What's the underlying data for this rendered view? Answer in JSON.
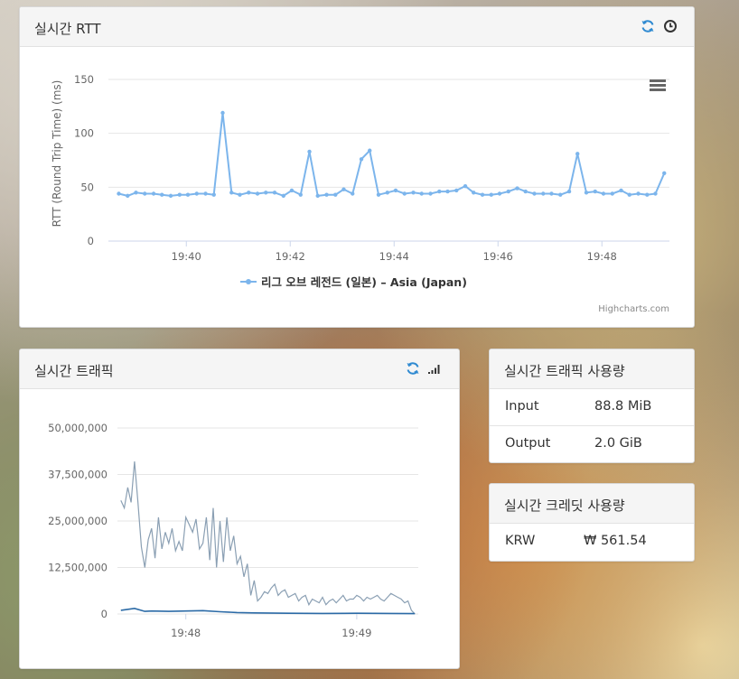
{
  "rtt_panel": {
    "title": "실시간 RTT",
    "icons": [
      "refresh-icon",
      "clock-icon",
      "menu-icon"
    ],
    "credit": "Highcharts.com"
  },
  "traffic_panel": {
    "title": "실시간 트래픽",
    "icons": [
      "refresh-icon",
      "signal-icon"
    ]
  },
  "usage_panel": {
    "title": "실시간 트래픽 사용량",
    "rows": [
      {
        "label": "Input",
        "value": "88.8 MiB"
      },
      {
        "label": "Output",
        "value": "2.0 GiB"
      }
    ]
  },
  "credit_panel": {
    "title": "실시간 크레딧 사용량",
    "rows": [
      {
        "label": "KRW",
        "value": "₩ 561.54"
      }
    ]
  },
  "colors": {
    "rtt_line": "#7cb5ec",
    "traffic_line_1": "#8a9fb3",
    "traffic_line_2": "#2b6aa6",
    "icon_blue": "#2f8ad1"
  },
  "chart_data": [
    {
      "type": "line",
      "ylabel": "RTT (Round Trip Time) (ms)",
      "ylim": [
        0,
        150
      ],
      "yticks": [
        "150",
        "100",
        "50",
        "0"
      ],
      "xticks": [
        "19:40",
        "19:42",
        "19:44",
        "19:46",
        "19:48"
      ],
      "grid": true,
      "legend_position": "bottom-center",
      "series": [
        {
          "name": "리그 오브 레전드 (일본) – Asia (Japan)",
          "x_minutes": [
            38.7,
            38.87,
            39.03,
            39.2,
            39.37,
            39.53,
            39.7,
            39.87,
            40.03,
            40.2,
            40.37,
            40.53,
            40.7,
            40.87,
            41.03,
            41.2,
            41.37,
            41.53,
            41.7,
            41.87,
            42.03,
            42.2,
            42.37,
            42.53,
            42.7,
            42.87,
            43.03,
            43.2,
            43.37,
            43.53,
            43.7,
            43.87,
            44.03,
            44.2,
            44.37,
            44.53,
            44.7,
            44.87,
            45.03,
            45.2,
            45.37,
            45.53,
            45.7,
            45.87,
            46.03,
            46.2,
            46.37,
            46.53,
            46.7,
            46.87,
            47.03,
            47.2,
            47.37,
            47.53,
            47.7,
            47.87,
            48.03,
            48.2,
            48.37,
            48.53,
            48.7,
            48.87,
            49.03,
            49.2
          ],
          "values": [
            44,
            42,
            45,
            44,
            44,
            43,
            42,
            43,
            43,
            44,
            44,
            43,
            119,
            45,
            43,
            45,
            44,
            45,
            45,
            42,
            47,
            43,
            83,
            42,
            43,
            43,
            48,
            44,
            76,
            84,
            43,
            45,
            47,
            44,
            45,
            44,
            44,
            46,
            46,
            47,
            51,
            45,
            43,
            43,
            44,
            46,
            49,
            46,
            44,
            44,
            44,
            43,
            46,
            81,
            45,
            46,
            44,
            44,
            47,
            43,
            44,
            43,
            44,
            63
          ]
        }
      ]
    },
    {
      "type": "line",
      "ylim": [
        0,
        50000000
      ],
      "yticks": [
        "50,000,000",
        "37,500,000",
        "25,000,000",
        "12,500,000",
        "0"
      ],
      "xticks": [
        "19:48",
        "19:49"
      ],
      "grid": true,
      "series": [
        {
          "name": "",
          "x_minutes": [
            47.62,
            47.64,
            47.66,
            47.68,
            47.7,
            47.72,
            47.74,
            47.76,
            47.78,
            47.8,
            47.82,
            47.84,
            47.86,
            47.88,
            47.9,
            47.92,
            47.94,
            47.96,
            47.98,
            48.0,
            48.02,
            48.04,
            48.06,
            48.08,
            48.1,
            48.12,
            48.14,
            48.16,
            48.18,
            48.2,
            48.22,
            48.24,
            48.26,
            48.28,
            48.3,
            48.32,
            48.34,
            48.36,
            48.38,
            48.4,
            48.42,
            48.44,
            48.46,
            48.48,
            48.5,
            48.52,
            48.54,
            48.56,
            48.58,
            48.6,
            48.62,
            48.64,
            48.66,
            48.68,
            48.7,
            48.72,
            48.74,
            48.76,
            48.78,
            48.8,
            48.82,
            48.84,
            48.86,
            48.88,
            48.9,
            48.92,
            48.94,
            48.96,
            48.98,
            49.0,
            49.02,
            49.04,
            49.06,
            49.08,
            49.1,
            49.12,
            49.14,
            49.16,
            49.18,
            49.2,
            49.22,
            49.24,
            49.26,
            49.28,
            49.3,
            49.32,
            49.34
          ],
          "values": [
            30500000,
            28500000,
            34000000,
            30000000,
            41000000,
            30000000,
            18000000,
            12500000,
            20000000,
            23000000,
            15000000,
            26000000,
            17500000,
            22000000,
            19000000,
            23000000,
            17000000,
            19500000,
            17000000,
            26000000,
            24000000,
            22000000,
            25500000,
            17500000,
            19000000,
            26000000,
            14500000,
            28500000,
            12500000,
            25000000,
            14000000,
            26000000,
            17000000,
            21000000,
            13500000,
            15500000,
            10000000,
            13500000,
            5000000,
            9000000,
            3500000,
            4500000,
            6000000,
            5500000,
            7000000,
            8000000,
            5000000,
            6000000,
            6500000,
            4500000,
            5000000,
            5500000,
            3500000,
            4500000,
            5000000,
            2500000,
            4000000,
            3500000,
            3000000,
            4500000,
            2500000,
            3500000,
            4000000,
            3000000,
            4000000,
            5000000,
            3500000,
            4000000,
            4000000,
            5000000,
            4500000,
            3500000,
            4500000,
            4000000,
            4500000,
            5000000,
            4000000,
            3500000,
            4500000,
            5500000,
            5000000,
            4500000,
            4000000,
            3000000,
            3500000,
            1000000,
            0
          ]
        },
        {
          "name": "",
          "x_minutes": [
            47.62,
            47.7,
            47.76,
            47.8,
            47.9,
            48.0,
            48.1,
            48.2,
            48.3,
            48.4,
            48.6,
            48.8,
            49.0,
            49.2,
            49.34
          ],
          "values": [
            1000000,
            1500000,
            700000,
            800000,
            700000,
            800000,
            900000,
            600000,
            400000,
            300000,
            200000,
            150000,
            200000,
            150000,
            100000
          ]
        }
      ]
    }
  ]
}
